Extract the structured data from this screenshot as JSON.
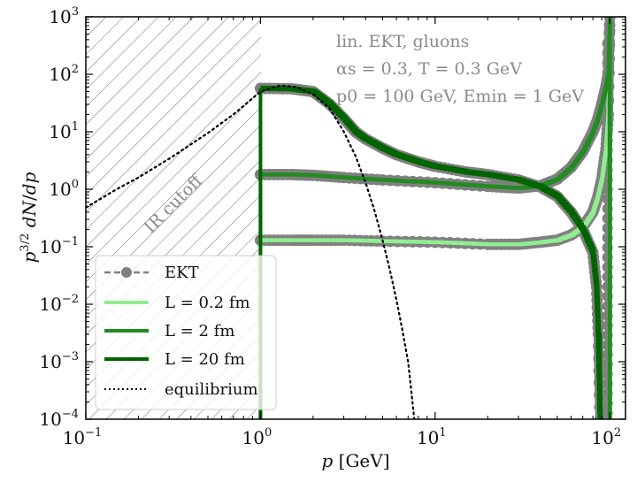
{
  "chart_data": {
    "type": "line",
    "title": "",
    "xlabel": "p [GeV]",
    "ylabel": "p^{3/2} dN/dp",
    "xscale": "log",
    "yscale": "log",
    "xlim": [
      0.1,
      123
    ],
    "ylim": [
      0.0001,
      1000
    ],
    "grid": false,
    "x_ticks": [
      {
        "value": 0.1,
        "base": "10",
        "exp": "−1"
      },
      {
        "value": 1,
        "base": "10",
        "exp": "0"
      },
      {
        "value": 10,
        "base": "10",
        "exp": "1"
      },
      {
        "value": 100,
        "base": "10",
        "exp": "2"
      }
    ],
    "y_ticks": [
      {
        "value": 0.0001,
        "base": "10",
        "exp": "−4"
      },
      {
        "value": 0.001,
        "base": "10",
        "exp": "−3"
      },
      {
        "value": 0.01,
        "base": "10",
        "exp": "−2"
      },
      {
        "value": 0.1,
        "base": "10",
        "exp": "−1"
      },
      {
        "value": 1,
        "base": "10",
        "exp": "0"
      },
      {
        "value": 10,
        "base": "10",
        "exp": "1"
      },
      {
        "value": 100,
        "base": "10",
        "exp": "2"
      },
      {
        "value": 1000,
        "base": "10",
        "exp": "3"
      }
    ],
    "shaded_region": {
      "label": "IR cutoff",
      "x_range": [
        0.1,
        1
      ],
      "style": "hatched"
    },
    "annotations": [
      "lin. EKT, gluons",
      "αs = 0.3, T = 0.3 GeV",
      "p0 = 100 GeV, Emin = 1 GeV"
    ],
    "legend": {
      "placement": "lower-left",
      "entries": [
        {
          "label": "EKT",
          "style": "gray dashed with circle markers",
          "color": "#808080"
        },
        {
          "label": "L = 0.2 fm",
          "style": "solid",
          "color": "#90ee90"
        },
        {
          "label": "L = 2 fm",
          "style": "solid",
          "color": "#228b22"
        },
        {
          "label": "L = 20 fm",
          "style": "solid",
          "color": "#006400"
        },
        {
          "label": "equilibrium",
          "style": "dotted",
          "color": "#000000"
        }
      ]
    },
    "series": [
      {
        "name": "L = 0.2 fm",
        "color": "#90ee90",
        "x": [
          1,
          1.5,
          2,
          3,
          5,
          10,
          20,
          30,
          40,
          50,
          60,
          70,
          80,
          85,
          90,
          95,
          98,
          100
        ],
        "y": [
          0.13,
          0.13,
          0.13,
          0.13,
          0.125,
          0.12,
          0.11,
          0.11,
          0.12,
          0.13,
          0.16,
          0.22,
          0.4,
          0.7,
          1.5,
          5,
          20,
          1000
        ]
      },
      {
        "name": "L = 2 fm",
        "color": "#228b22",
        "x": [
          1,
          1.5,
          2,
          3,
          5,
          10,
          20,
          30,
          40,
          50,
          60,
          70,
          80,
          85,
          90,
          95,
          98,
          100
        ],
        "y": [
          1.8,
          1.8,
          1.75,
          1.6,
          1.45,
          1.3,
          1.12,
          1.05,
          1.15,
          1.5,
          2.4,
          4.5,
          10,
          16,
          30,
          60,
          100,
          1000
        ]
      },
      {
        "name": "L = 20 fm",
        "color": "#006400",
        "x": [
          1,
          1.5,
          2,
          2.5,
          3,
          3.5,
          4,
          5,
          6,
          8,
          10,
          15,
          20,
          30,
          40,
          50,
          60,
          70,
          80,
          84,
          86,
          88
        ],
        "y": [
          57,
          56,
          50,
          30,
          17,
          10,
          7.5,
          5.2,
          4.0,
          3.0,
          2.5,
          2.0,
          1.8,
          1.45,
          1.1,
          0.75,
          0.4,
          0.2,
          0.08,
          0.02,
          0.003,
          0.0001
        ]
      },
      {
        "name": "equilibrium",
        "color": "#000000",
        "x": [
          0.1,
          0.15,
          0.2,
          0.3,
          0.5,
          0.7,
          1,
          1.3,
          1.6,
          2,
          2.5,
          3,
          3.5,
          4,
          4.5,
          5,
          5.5,
          6,
          6.5,
          7,
          7.6
        ],
        "y": [
          0.48,
          1.0,
          1.6,
          3.4,
          9.5,
          20,
          50,
          64,
          60,
          45,
          25,
          10,
          3.8,
          1.3,
          0.42,
          0.13,
          0.04,
          0.012,
          0.0035,
          0.001,
          0.0001
        ]
      }
    ]
  }
}
